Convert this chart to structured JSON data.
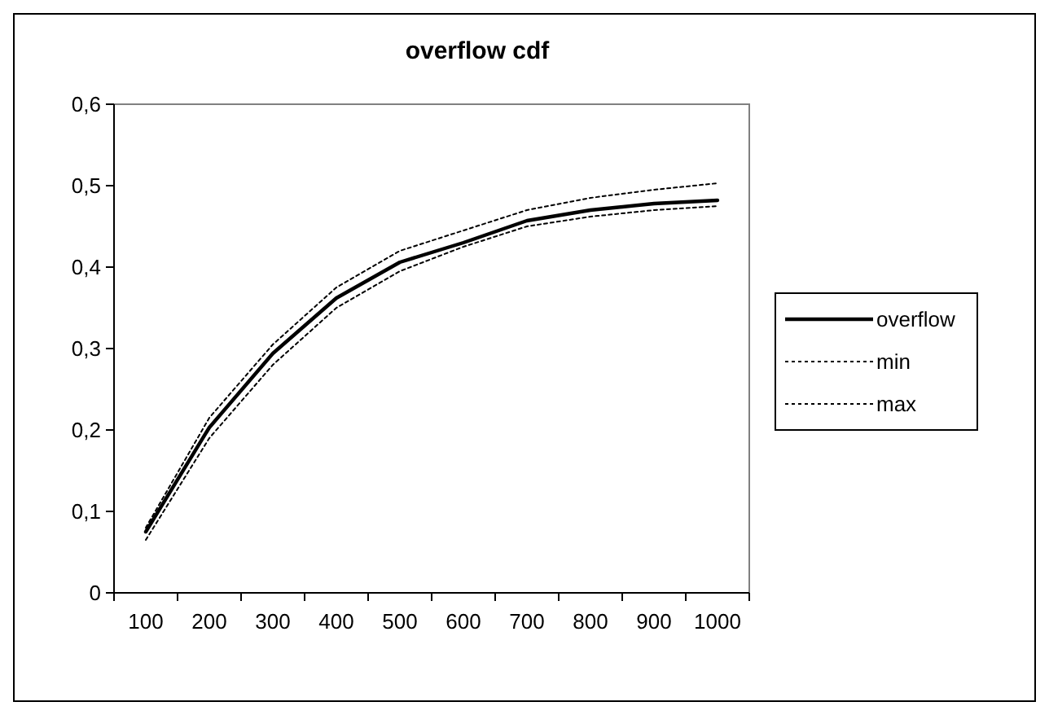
{
  "chart_data": {
    "type": "line",
    "title": "overflow cdf",
    "categories": [
      "100",
      "200",
      "300",
      "400",
      "500",
      "600",
      "700",
      "800",
      "900",
      "1000"
    ],
    "ylim": [
      0,
      0.6
    ],
    "yticks": [
      {
        "value": 0,
        "label": "0"
      },
      {
        "value": 0.1,
        "label": "0,1"
      },
      {
        "value": 0.2,
        "label": "0,2"
      },
      {
        "value": 0.3,
        "label": "0,3"
      },
      {
        "value": 0.4,
        "label": "0,4"
      },
      {
        "value": 0.5,
        "label": "0,5"
      },
      {
        "value": 0.6,
        "label": "0,6"
      }
    ],
    "grid": false,
    "legend": "right",
    "marker": "none",
    "series": [
      {
        "name": "overflow",
        "color": "#000000",
        "line_style": "solid",
        "values": [
          0.075,
          0.203,
          0.294,
          0.362,
          0.406,
          0.43,
          0.457,
          0.47,
          0.478,
          0.482
        ]
      },
      {
        "name": "min",
        "color": "#000000",
        "line_style": "dotted",
        "values": [
          0.065,
          0.19,
          0.28,
          0.35,
          0.395,
          0.425,
          0.45,
          0.462,
          0.47,
          0.475
        ]
      },
      {
        "name": "max",
        "color": "#000000",
        "line_style": "dotted",
        "values": [
          0.08,
          0.215,
          0.305,
          0.375,
          0.42,
          0.445,
          0.47,
          0.485,
          0.495,
          0.503
        ]
      }
    ]
  }
}
